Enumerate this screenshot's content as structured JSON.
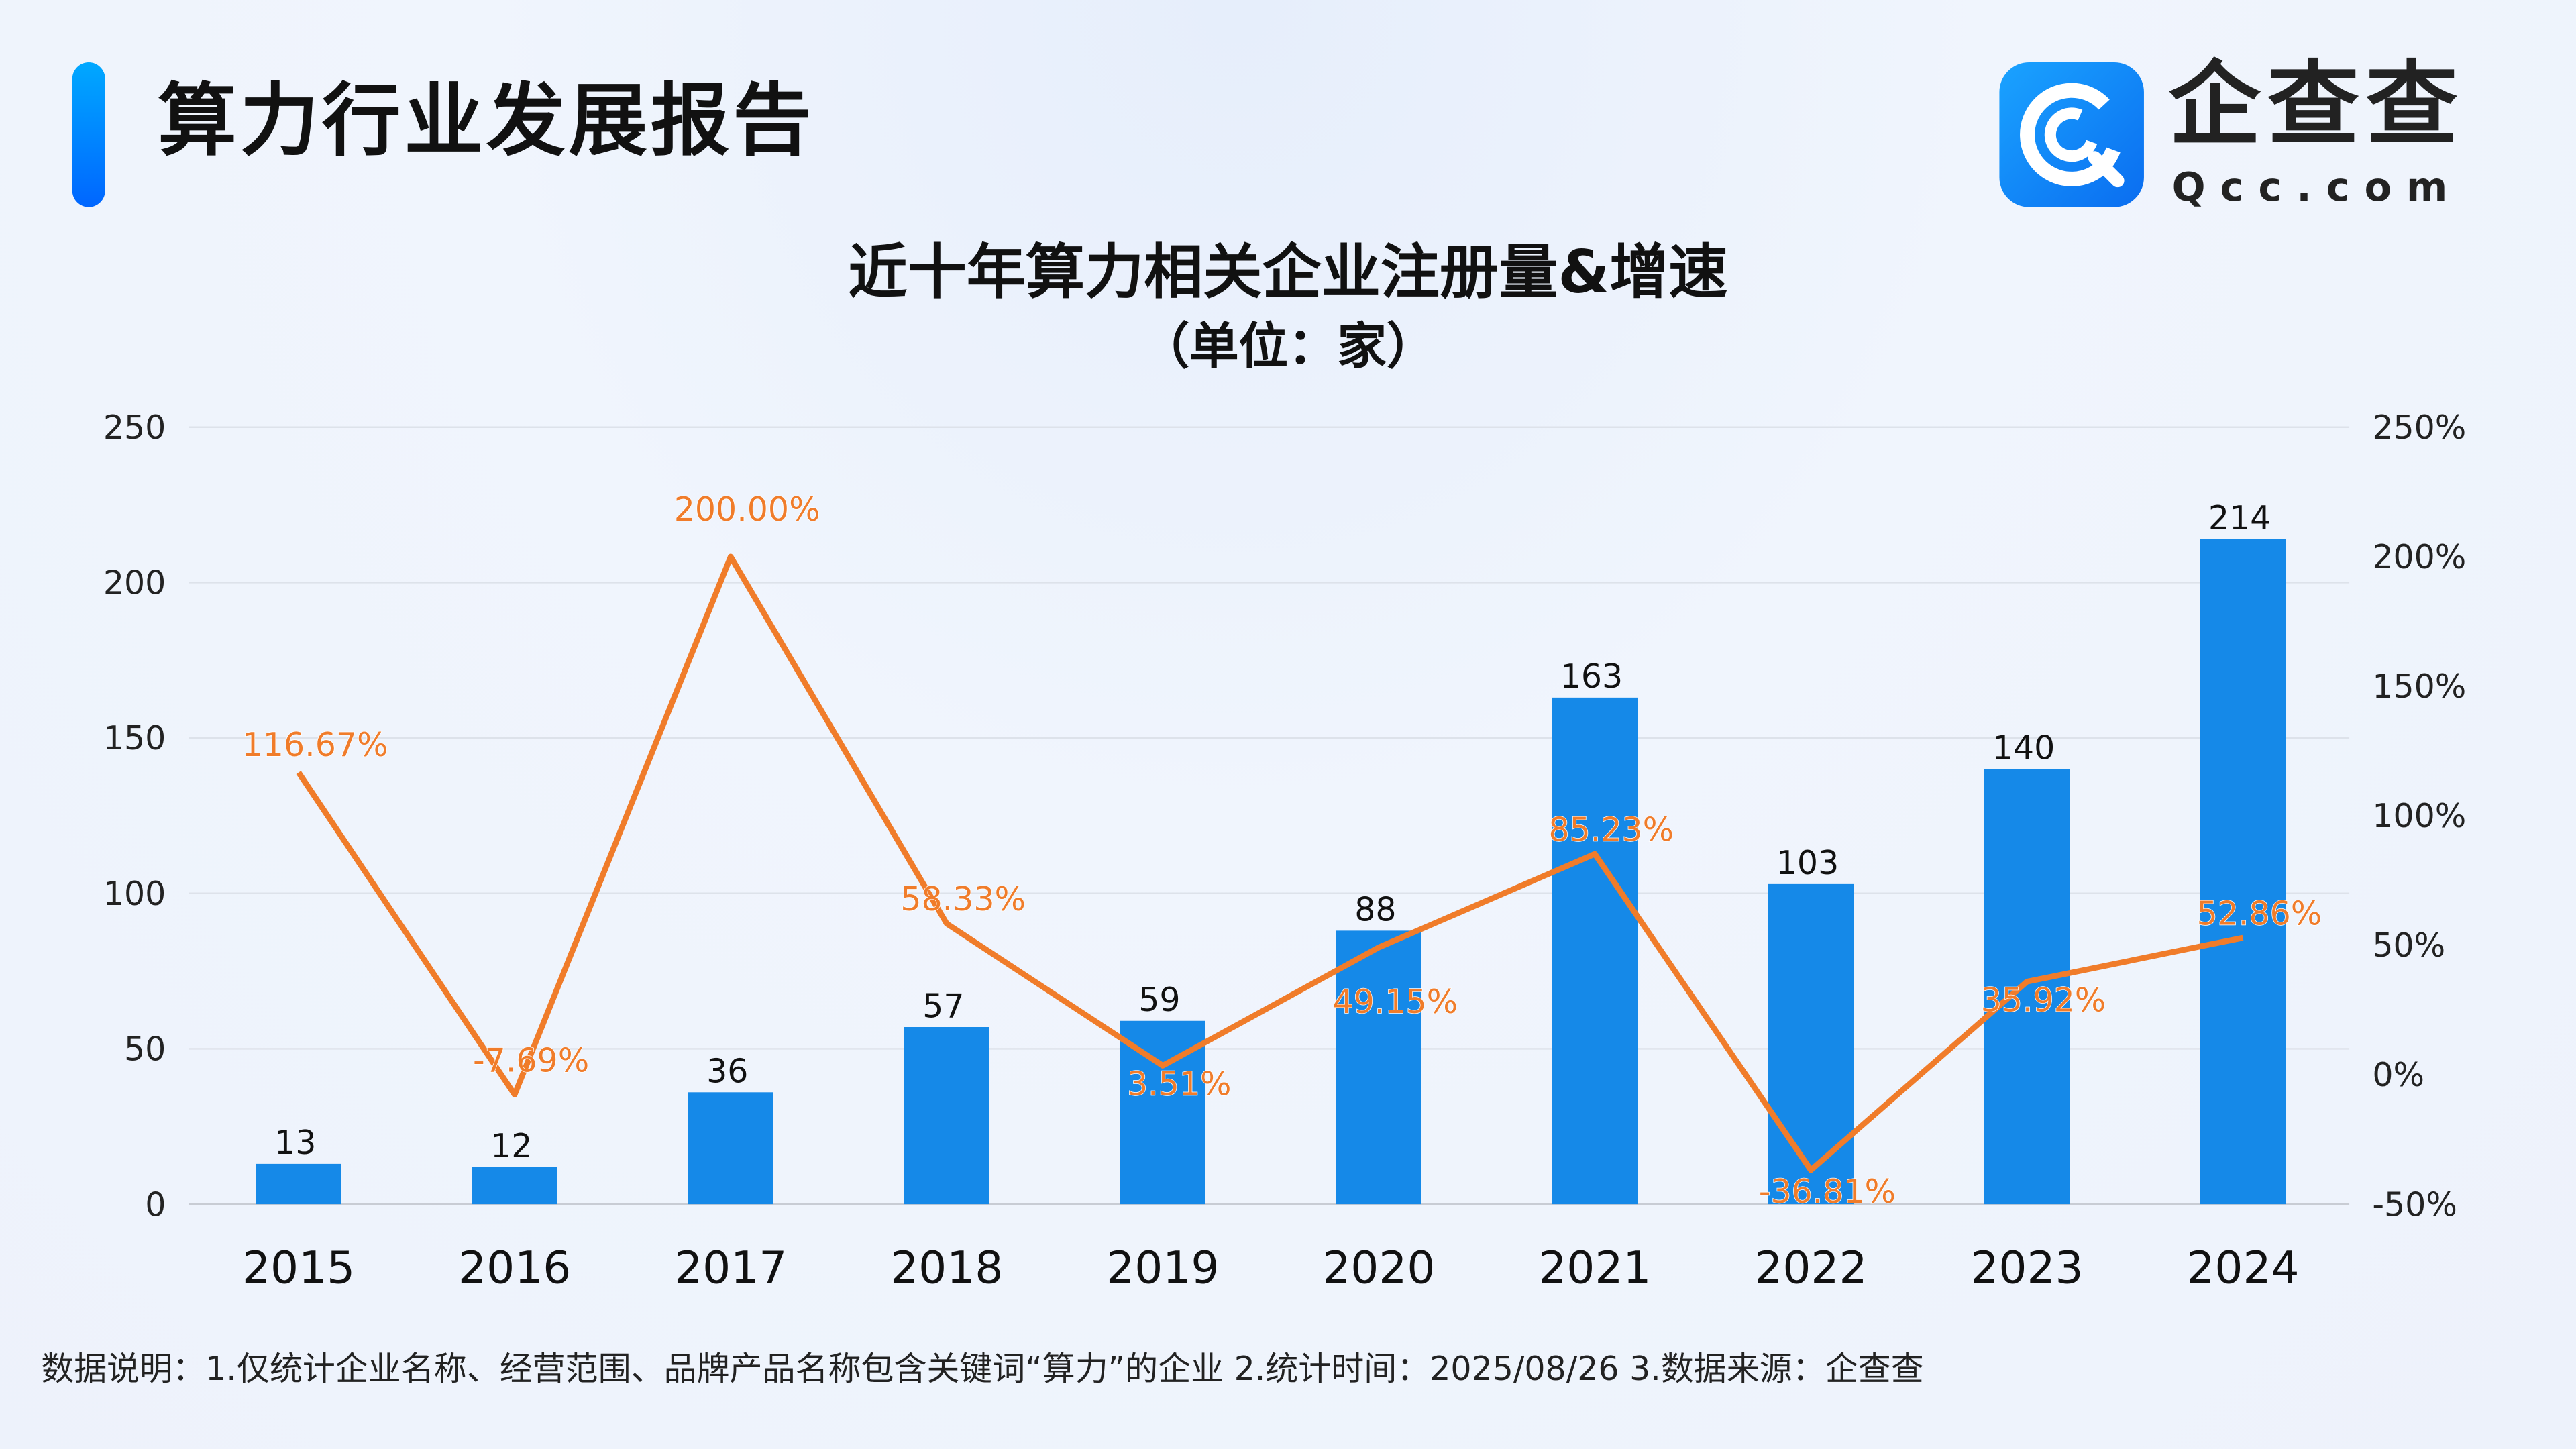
{
  "header": {
    "title": "算力行业发展报告",
    "logo_text": "企查查",
    "logo_sub": "Qcc.com"
  },
  "chart_data": {
    "type": "bar+line",
    "title": "近十年算力相关企业注册量&增速",
    "subtitle": "（单位：家）",
    "categories": [
      "2015",
      "2016",
      "2017",
      "2018",
      "2019",
      "2020",
      "2021",
      "2022",
      "2023",
      "2024"
    ],
    "series": [
      {
        "type": "bar",
        "axis": "left",
        "color": "#1589e8",
        "values": [
          13,
          12,
          36,
          57,
          59,
          88,
          163,
          103,
          140,
          214
        ]
      },
      {
        "type": "line",
        "axis": "right",
        "color": "#f07c2a",
        "values": [
          116.67,
          -7.69,
          200.0,
          58.33,
          3.51,
          49.15,
          85.23,
          -36.81,
          35.92,
          52.86
        ],
        "labels": [
          "116.67%",
          "-7.69%",
          "200.00%",
          "58.33%",
          "3.51%",
          "49.15%",
          "85.23%",
          "-36.81%",
          "35.92%",
          "52.86%"
        ]
      }
    ],
    "left_axis": {
      "ylim": [
        0,
        250
      ],
      "ticks": [
        "0",
        "50",
        "100",
        "150",
        "200",
        "250"
      ]
    },
    "right_axis": {
      "ylim": [
        -50,
        250
      ],
      "ticks": [
        "-50%",
        "0%",
        "50%",
        "100%",
        "150%",
        "200%",
        "250%"
      ]
    },
    "grid": true
  },
  "footnote": "数据说明：1.仅统计企业名称、经营范围、品牌产品名称包含关键词“算力”的企业   2.统计时间：2025/08/26    3.数据来源：企查查"
}
